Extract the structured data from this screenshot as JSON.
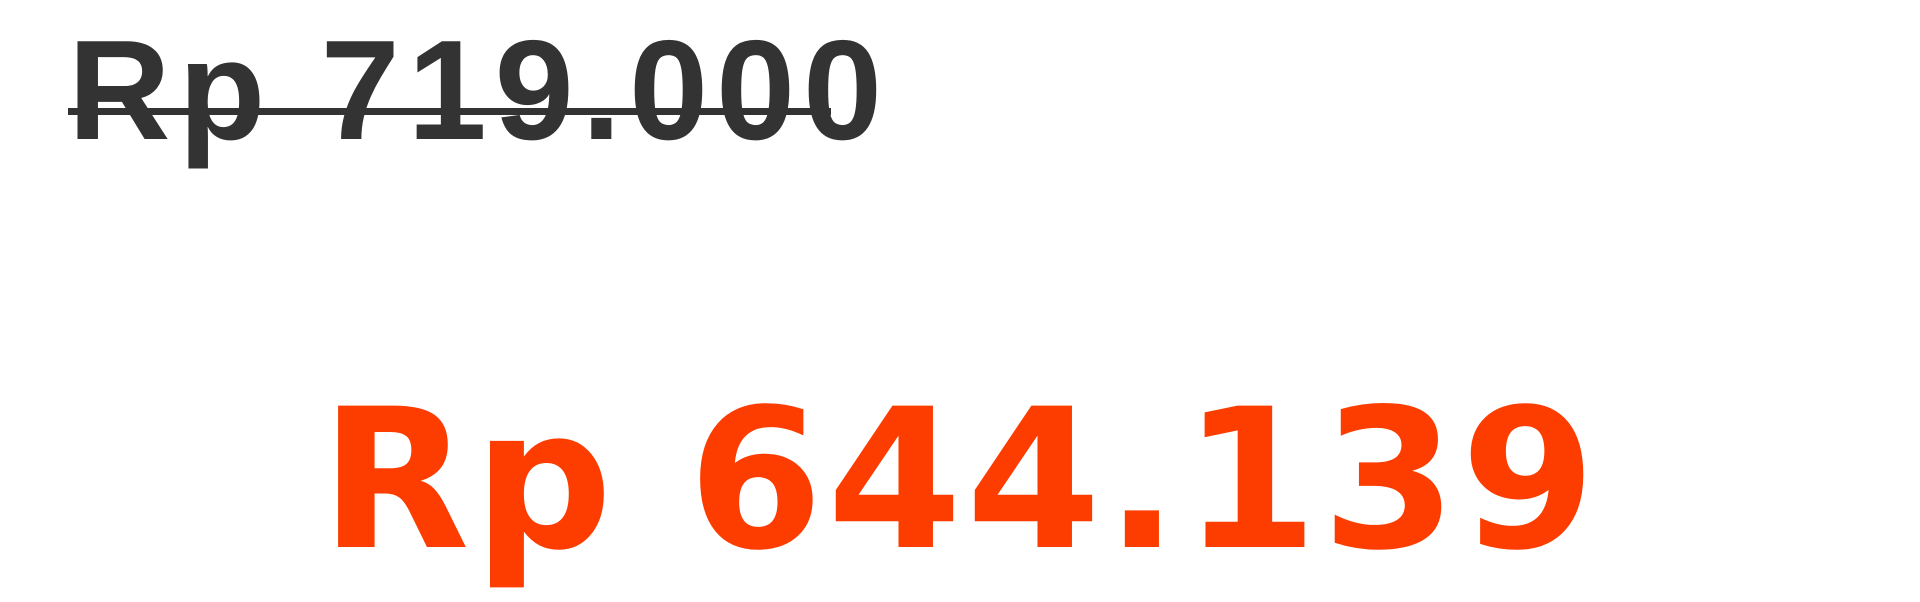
{
  "pricing": {
    "original_price": "Rp 719.000",
    "sale_price": "Rp 644.139"
  },
  "colors": {
    "original_text": "#333333",
    "strike_line": "#333333",
    "sale_text": "#fd3d00",
    "background": "#ffffff"
  }
}
